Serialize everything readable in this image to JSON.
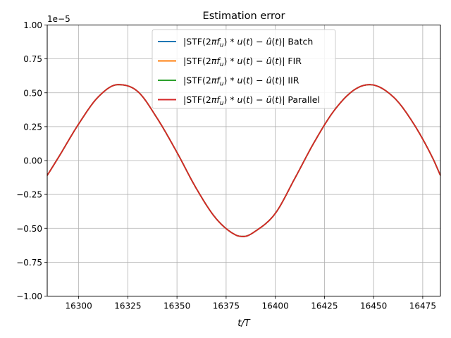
{
  "chart_data": {
    "type": "line",
    "title": "Estimation error",
    "xlabel": "t/T",
    "ylabel": "",
    "y_offset_label": "1e−5",
    "xlim": [
      16284,
      16484
    ],
    "ylim": [
      -1.0,
      1.0
    ],
    "x_ticks": [
      16300,
      16325,
      16350,
      16375,
      16400,
      16425,
      16450,
      16475
    ],
    "y_ticks": [
      -1.0,
      -0.75,
      -0.5,
      -0.25,
      0.0,
      0.25,
      0.5,
      0.75,
      1.0
    ],
    "x_tick_labels": [
      "16300",
      "16325",
      "16350",
      "16375",
      "16400",
      "16425",
      "16450",
      "16475"
    ],
    "y_tick_labels": [
      "−1.00",
      "−0.75",
      "−0.50",
      "−0.25",
      "0.00",
      "0.25",
      "0.50",
      "0.75",
      "1.00"
    ],
    "grid": true,
    "legend_placement": "top-center",
    "series": [
      {
        "name": "|STF(2πf_u) * u(t) − û(t)| Batch",
        "color": "#1f77b4"
      },
      {
        "name": "|STF(2πf_u) * u(t) − û(t)| FIR",
        "color": "#ff7f0e"
      },
      {
        "name": "|STF(2πf_u) * u(t) − û(t)| IIR",
        "color": "#2ca02c"
      },
      {
        "name": "|STF(2πf_u) * u(t) − û(t)| Parallel",
        "color": "#d62728"
      }
    ],
    "x": [
      16284,
      16290,
      16300,
      16310,
      16320,
      16330,
      16340,
      16350,
      16360,
      16370,
      16380,
      16384,
      16390,
      16400,
      16410,
      16420,
      16430,
      16440,
      16448,
      16460,
      16470,
      16480,
      16484
    ],
    "y": [
      -0.11,
      0.03,
      0.27,
      0.47,
      0.56,
      0.51,
      0.31,
      0.06,
      -0.21,
      -0.43,
      -0.55,
      -0.56,
      -0.52,
      -0.39,
      -0.13,
      0.14,
      0.37,
      0.52,
      0.56,
      0.47,
      0.28,
      0.02,
      -0.11
    ]
  }
}
